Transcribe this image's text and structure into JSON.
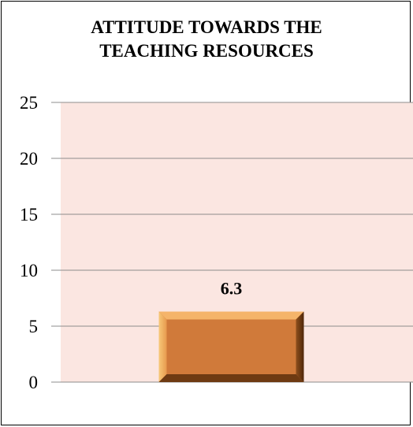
{
  "chart_data": {
    "type": "bar",
    "title": "ATTITUDE TOWARDS THE TEACHING RESOURCES",
    "title_lines": [
      "ATTITUDE TOWARDS THE",
      "TEACHING RESOURCES"
    ],
    "categories": [
      ""
    ],
    "values": [
      6.3
    ],
    "data_labels": [
      "6.3"
    ],
    "xlabel": "",
    "ylabel": "",
    "ylim": [
      0,
      25
    ],
    "yticks": [
      0,
      5,
      10,
      15,
      20,
      25
    ],
    "grid": true,
    "legend": "none",
    "colors": {
      "plot_background": "#fbe6e1",
      "bar_fill": "#d07a3a",
      "bar_highlight": "#f5b46a",
      "bar_shadow": "#6e3a12",
      "gridline": "#8c8c8c"
    }
  }
}
